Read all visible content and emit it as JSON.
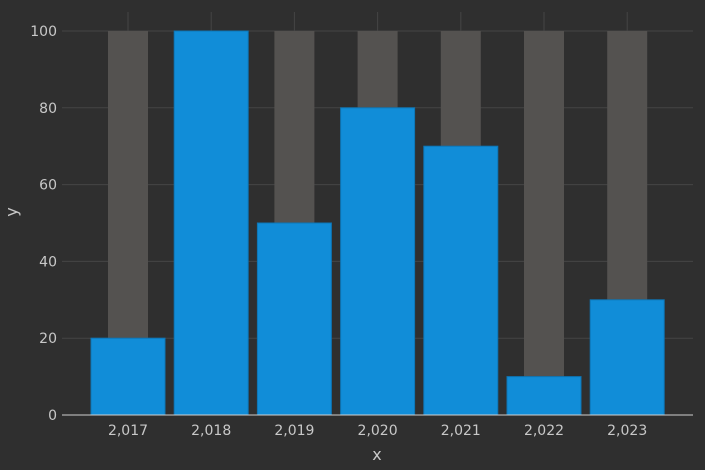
{
  "chart_data": {
    "type": "bar",
    "categories": [
      "2,017",
      "2,018",
      "2,019",
      "2,020",
      "2,021",
      "2,022",
      "2,023"
    ],
    "x": [
      2017,
      2018,
      2019,
      2020,
      2021,
      2022,
      2023
    ],
    "values": [
      20,
      100,
      50,
      80,
      70,
      10,
      30
    ],
    "background_values": [
      100,
      100,
      100,
      100,
      100,
      100,
      100
    ],
    "xlabel": "x",
    "ylabel": "y",
    "ylim": [
      0,
      100
    ],
    "yticks": [
      0,
      20,
      40,
      60,
      80,
      100
    ],
    "grid": true,
    "colors": {
      "bar": "#118dd8",
      "background_bar": "#545250",
      "background": "#2f2f2f",
      "grid": "#454545",
      "axis": "#cfcfcf",
      "text": "#c8c8c8"
    }
  }
}
